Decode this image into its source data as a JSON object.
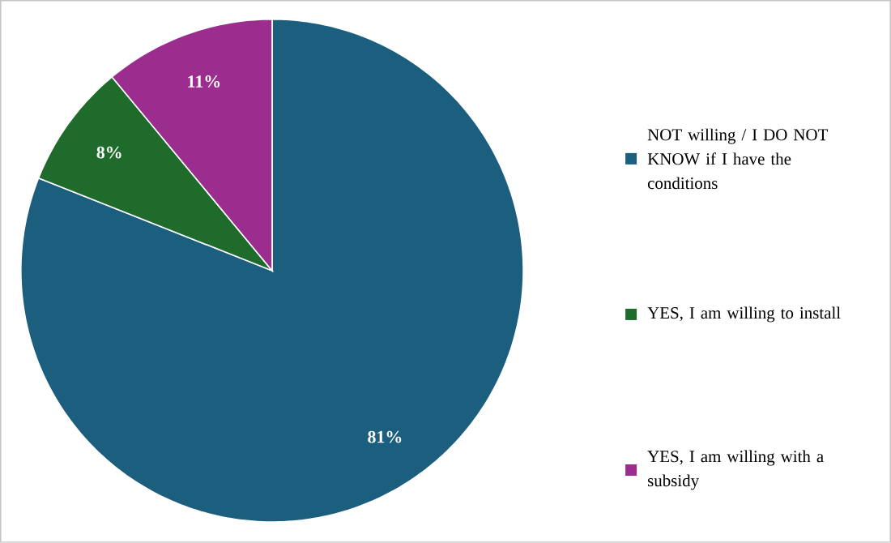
{
  "chart_data": {
    "type": "pie",
    "categories": [
      "NOT willing / I DO NOT KNOW if I have the conditions",
      "YES, I am willing to install",
      "YES, I am willing with a subsidy"
    ],
    "values": [
      81,
      8,
      11
    ],
    "value_labels": [
      "81%",
      "8%",
      "11%"
    ],
    "colors": [
      "#1b5e7e",
      "#1f6b2c",
      "#9b2d8e"
    ],
    "legend": "right"
  }
}
